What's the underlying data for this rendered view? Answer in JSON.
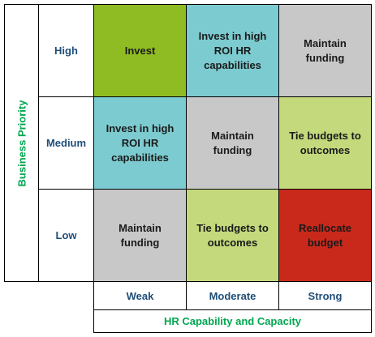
{
  "colors": {
    "invest": "#8fbc22",
    "invest_capabilities": "#7ccbd0",
    "maintain": "#c8c8c8",
    "tie": "#c3d97b",
    "reallocate": "#c8291b",
    "axis_title": "#00a650",
    "axis_label": "#1f4e79"
  },
  "y_axis": {
    "title": "Business Priority",
    "levels": [
      "High",
      "Medium",
      "Low"
    ]
  },
  "x_axis": {
    "title": "HR Capability and Capacity",
    "levels": [
      "Weak",
      "Moderate",
      "Strong"
    ]
  },
  "grid": [
    [
      {
        "text": "Invest",
        "fill": "invest"
      },
      {
        "text": "Invest in high ROI HR capabilities",
        "fill": "invest_capabilities"
      },
      {
        "text": "Maintain funding",
        "fill": "maintain"
      }
    ],
    [
      {
        "text": "Invest in high ROI HR capabilities",
        "fill": "invest_capabilities"
      },
      {
        "text": "Maintain funding",
        "fill": "maintain"
      },
      {
        "text": "Tie budgets to outcomes",
        "fill": "tie"
      }
    ],
    [
      {
        "text": "Maintain funding",
        "fill": "maintain"
      },
      {
        "text": "Tie budgets to outcomes",
        "fill": "tie"
      },
      {
        "text": "Reallocate budget",
        "fill": "reallocate"
      }
    ]
  ]
}
